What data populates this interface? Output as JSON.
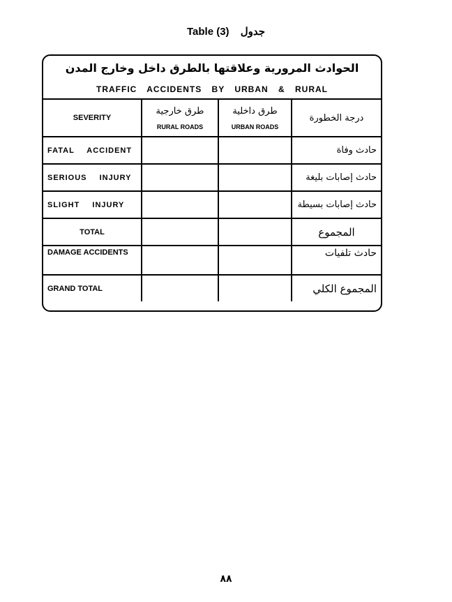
{
  "title": {
    "en": "Table (3)",
    "ar": "جدول"
  },
  "table": {
    "title_ar": "الحوادث المرورية وعلاقتها بالطرق داخل وخارج المدن",
    "title_en": "TRAFFIC ACCIDENTS BY URBAN & RURAL",
    "headers": {
      "severity": "SEVERITY",
      "rural_ar": "طرق خارجية",
      "rural_en": "RURAL ROADS",
      "urban_ar": "طرق داخلية",
      "urban_en": "URBAN ROADS",
      "severity_ar": "درجة الخطورة"
    },
    "rows": [
      {
        "en": "FATAL ACCIDENT",
        "ar": "حادث وفاة",
        "rural": "",
        "urban": ""
      },
      {
        "en": "SERIOUS INJURY",
        "ar": "حادث إصابات بليغة",
        "rural": "",
        "urban": ""
      },
      {
        "en": "SLIGHT INJURY",
        "ar": "حادث إصابات بسيطة",
        "rural": "",
        "urban": ""
      },
      {
        "en": "TOTAL",
        "ar": "المجموع",
        "rural": "",
        "urban": ""
      },
      {
        "en": "DAMAGE ACCIDENTS",
        "ar": "حادث تلفيات",
        "rural": "",
        "urban": ""
      },
      {
        "en": "GRAND TOTAL",
        "ar": "المجموع الكلي",
        "rural": "",
        "urban": ""
      }
    ]
  },
  "page_number": "٨٨"
}
